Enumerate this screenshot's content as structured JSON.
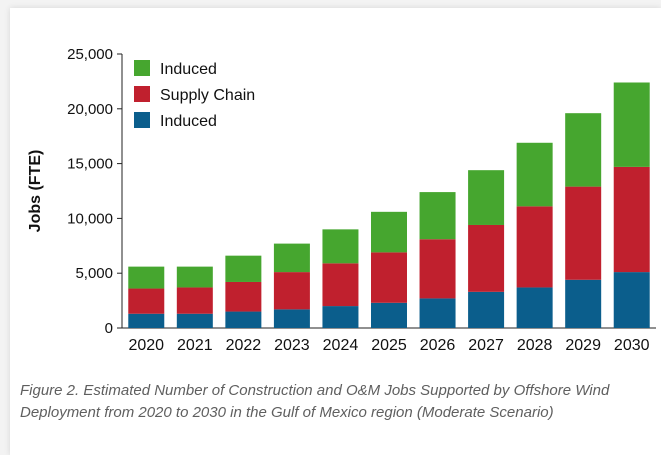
{
  "chart_data": {
    "type": "bar",
    "stacked": true,
    "categories": [
      "2020",
      "2021",
      "2022",
      "2023",
      "2024",
      "2025",
      "2026",
      "2027",
      "2028",
      "2029",
      "2030"
    ],
    "series": [
      {
        "name": "Induced",
        "color": "#0b5e8c",
        "values": [
          1300,
          1300,
          1500,
          1700,
          2000,
          2300,
          2700,
          3300,
          3700,
          4400,
          5100
        ]
      },
      {
        "name": "Supply Chain",
        "color": "#c0202e",
        "values": [
          2300,
          2400,
          2700,
          3400,
          3900,
          4600,
          5400,
          6100,
          7400,
          8500,
          9600
        ]
      },
      {
        "name": "Induced",
        "color": "#46a62f",
        "values": [
          2000,
          1900,
          2400,
          2600,
          3100,
          3700,
          4300,
          5000,
          5800,
          6700,
          7700
        ]
      }
    ],
    "legend_order": [
      2,
      1,
      0
    ],
    "legend_position": "top-left",
    "ylabel": "Jobs (FTE)",
    "xlabel": "",
    "ylim": [
      0,
      25000
    ],
    "yticks": [
      0,
      5000,
      10000,
      15000,
      20000,
      25000
    ],
    "ytick_labels": [
      "0",
      "5,000",
      "10,000",
      "15,000",
      "20,000",
      "25,000"
    ],
    "grid": false
  },
  "caption": "Figure 2.  Estimated Number of Construction and O&M Jobs Supported by Offshore Wind Deployment from 2020 to 2030 in the Gulf of Mexico region (Moderate Scenario)"
}
